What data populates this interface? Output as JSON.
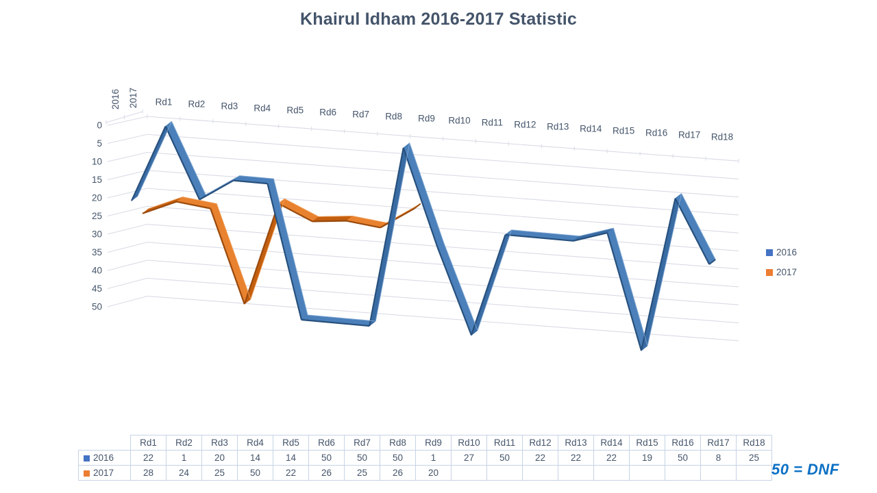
{
  "title": "Khairul Idham 2016-2017 Statistic",
  "note": "50 = DNF",
  "colors": {
    "title_text": "#44546A",
    "axis_text": "#44546A",
    "gridline": "#d9dbe6",
    "table_border": "#c6d3e6",
    "note_blue": "#0a70c4"
  },
  "chart_data": {
    "type": "line",
    "style": "3d-ribbon",
    "title": "Khairul Idham 2016-2017 Statistic",
    "categories": [
      "Rd1",
      "Rd2",
      "Rd3",
      "Rd4",
      "Rd5",
      "Rd6",
      "Rd7",
      "Rd8",
      "Rd9",
      "Rd10",
      "Rd11",
      "Rd12",
      "Rd13",
      "Rd14",
      "Rd15",
      "Rd16",
      "Rd17",
      "Rd18"
    ],
    "series": [
      {
        "name": "2016",
        "color": "#4472C4",
        "shade_down": "#4B80BA",
        "shade_up": "#3A6CA4",
        "edge": "#27507D",
        "highlight": "#85ABD6",
        "values": [
          22,
          1,
          20,
          14,
          14,
          50,
          50,
          50,
          1,
          27,
          50,
          22,
          22,
          22,
          19,
          50,
          8,
          25
        ]
      },
      {
        "name": "2017",
        "color": "#ED7D31",
        "shade_down": "#E8822F",
        "shade_up": "#C35F10",
        "edge": "#9A4A0C",
        "highlight": "#F2A05C",
        "values": [
          28,
          24,
          25,
          50,
          22,
          26,
          25,
          26,
          20,
          null,
          null,
          null,
          null,
          null,
          null,
          null,
          null,
          null
        ]
      }
    ],
    "value_axis": {
      "min": 0,
      "max": 50,
      "step": 5,
      "inverted": true,
      "tick_labels": [
        "0",
        "5",
        "10",
        "15",
        "20",
        "25",
        "30",
        "35",
        "40",
        "45",
        "50"
      ]
    },
    "depth_axis_labels": [
      "2016",
      "2017"
    ],
    "legend_position": "right",
    "grid": true
  },
  "table": {
    "corner_label": ""
  }
}
